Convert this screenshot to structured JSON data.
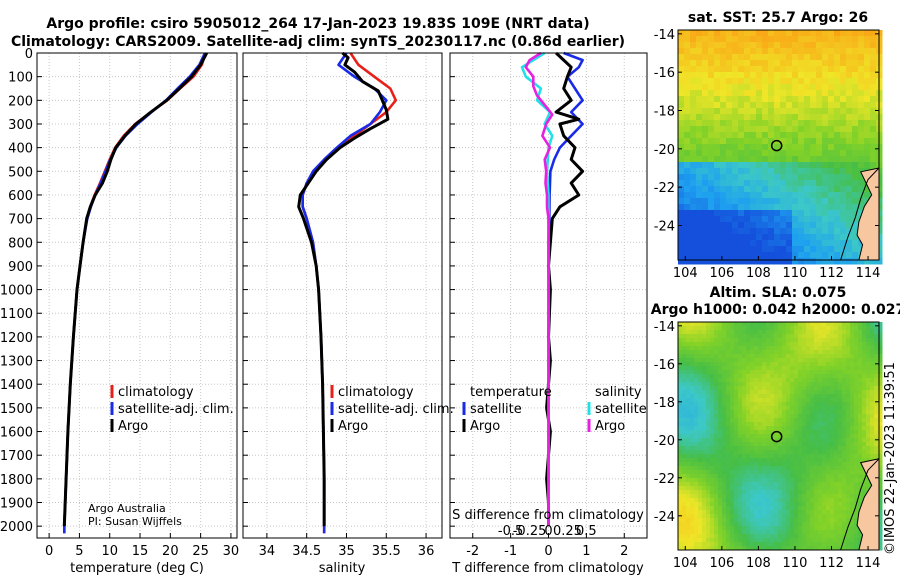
{
  "title_line1": "Argo profile: csiro 5905012_264 17-Jan-2023 19.83S 109E (NRT data)",
  "title_line2": "Climatology: CARS2009. Satellite-adj clim: synTS_20230117.nc (0.86d earlier)",
  "colors": {
    "climatology": "#e8201a",
    "satellite": "#1a2be8",
    "argo": "#000000",
    "sat_salinity": "#22e0e8",
    "argo_salinity": "#e622e0",
    "land": "#f7c8a0"
  },
  "credit": {
    "line1": "Argo Australia",
    "line2": "PI: Susan Wijffels"
  },
  "legend_main": [
    "climatology",
    "satellite-adj. clim.",
    "Argo"
  ],
  "legend_diff": {
    "temperature_head": "temperature",
    "salinity_head": "salinity",
    "temperature_items": [
      "satellite",
      "Argo"
    ],
    "salinity_items": [
      "satellite",
      "Argo"
    ]
  },
  "timestamp": "©IMOS 22-Jan-2023 11:39:51",
  "chart_data": [
    {
      "name": "temperature",
      "type": "line",
      "xlabel": "temperature (deg C)",
      "xlim": [
        -2,
        31
      ],
      "xticks": [
        0,
        5,
        10,
        15,
        20,
        25,
        30
      ],
      "ylim": [
        0,
        2050
      ],
      "yticks": [
        0,
        100,
        200,
        300,
        400,
        500,
        600,
        700,
        800,
        900,
        1000,
        1100,
        1200,
        1300,
        1400,
        1500,
        1600,
        1700,
        1800,
        1900,
        2000
      ],
      "series": [
        {
          "name": "climatology",
          "depth": [
            0,
            50,
            100,
            150,
            200,
            250,
            300,
            350,
            400,
            450,
            500,
            550,
            600,
            650,
            700,
            800,
            900,
            1000,
            1200,
            1400,
            1600,
            1800,
            2000,
            2030
          ],
          "values": [
            25.8,
            25.2,
            23.8,
            21.6,
            19.5,
            16.8,
            14.2,
            12.3,
            10.9,
            10.0,
            9.2,
            8.4,
            7.5,
            6.8,
            6.2,
            5.6,
            5.1,
            4.6,
            4.0,
            3.5,
            3.1,
            2.8,
            2.5,
            2.5
          ]
        },
        {
          "name": "satellite-adj. clim.",
          "depth": [
            0,
            50,
            100,
            150,
            200,
            250,
            300,
            350,
            400,
            450,
            500,
            550,
            600,
            650,
            700,
            800,
            900,
            1000,
            1200,
            1400,
            1600,
            1800,
            2000,
            2030
          ],
          "values": [
            25.7,
            24.8,
            23.2,
            21.2,
            19.3,
            16.9,
            14.6,
            12.6,
            11.1,
            10.1,
            9.3,
            8.5,
            7.6,
            6.9,
            6.3,
            5.6,
            5.1,
            4.6,
            4.0,
            3.5,
            3.1,
            2.8,
            2.5,
            2.5
          ]
        },
        {
          "name": "Argo",
          "depth": [
            0,
            50,
            100,
            150,
            200,
            250,
            300,
            350,
            400,
            450,
            500,
            550,
            600,
            650,
            700,
            800,
            900,
            1000,
            1200,
            1400,
            1600,
            1800,
            2000
          ],
          "values": [
            26.0,
            25.0,
            23.5,
            21.5,
            19.4,
            16.8,
            14.3,
            12.5,
            11.0,
            10.2,
            9.6,
            8.8,
            7.6,
            6.8,
            6.2,
            5.6,
            5.1,
            4.6,
            4.0,
            3.5,
            3.1,
            2.8,
            2.5
          ]
        }
      ]
    },
    {
      "name": "salinity",
      "type": "line",
      "xlabel": "salinity",
      "xlim": [
        33.7,
        36.2
      ],
      "xticks": [
        34,
        34.5,
        35,
        35.5,
        36
      ],
      "ylim": [
        0,
        2050
      ],
      "series": [
        {
          "name": "climatology",
          "depth": [
            0,
            50,
            100,
            150,
            200,
            250,
            300,
            350,
            400,
            450,
            500,
            550,
            600,
            650,
            700,
            800,
            900,
            1000,
            1200,
            1400,
            1600,
            1800,
            2000,
            2030
          ],
          "values": [
            35.05,
            35.15,
            35.35,
            35.55,
            35.62,
            35.5,
            35.3,
            35.1,
            34.9,
            34.75,
            34.6,
            34.5,
            34.45,
            34.45,
            34.5,
            34.58,
            34.62,
            34.65,
            34.68,
            34.7,
            34.71,
            34.72,
            34.72,
            34.72
          ]
        },
        {
          "name": "satellite-adj. clim.",
          "depth": [
            0,
            50,
            100,
            150,
            200,
            250,
            300,
            350,
            400,
            450,
            500,
            550,
            600,
            650,
            700,
            800,
            900,
            1000,
            1200,
            1400,
            1600,
            1800,
            2000,
            2030
          ],
          "values": [
            35.0,
            34.9,
            35.1,
            35.35,
            35.5,
            35.42,
            35.3,
            35.05,
            34.88,
            34.72,
            34.58,
            34.5,
            34.45,
            34.45,
            34.5,
            34.58,
            34.62,
            34.65,
            34.68,
            34.7,
            34.71,
            34.72,
            34.72,
            34.72
          ]
        },
        {
          "name": "Argo",
          "depth": [
            0,
            20,
            50,
            80,
            120,
            160,
            200,
            240,
            280,
            320,
            360,
            400,
            450,
            500,
            550,
            600,
            650,
            700,
            800,
            900,
            1000,
            1200,
            1400,
            1600,
            1800,
            2000
          ],
          "values": [
            34.95,
            35.02,
            34.98,
            35.1,
            35.2,
            35.4,
            35.45,
            35.5,
            35.52,
            35.3,
            35.1,
            34.92,
            34.75,
            34.62,
            34.52,
            34.42,
            34.4,
            34.46,
            34.56,
            34.62,
            34.65,
            34.68,
            34.7,
            34.71,
            34.72,
            34.72
          ]
        }
      ]
    },
    {
      "name": "difference",
      "type": "line",
      "xlabel": "T difference from climatology",
      "xlabel_top": "S difference from climatology",
      "xlim": [
        -2.6,
        2.6
      ],
      "xticks": [
        -2,
        -1,
        0,
        1,
        2
      ],
      "sticks": [
        -0.5,
        -0.25,
        0,
        0.25,
        0.5
      ],
      "stick_labels": [
        "-0.5",
        "-0.25",
        "0",
        "0.25",
        "0.5"
      ],
      "ylim": [
        0,
        2050
      ],
      "series": [
        {
          "name": "T satellite",
          "depth": [
            0,
            30,
            60,
            100,
            150,
            200,
            250,
            300,
            350,
            400,
            450,
            500,
            600,
            700,
            800,
            1000,
            1200,
            1500,
            1800,
            2000
          ],
          "values": [
            0.4,
            0.9,
            0.8,
            0.5,
            0.7,
            0.9,
            0.6,
            0.9,
            0.6,
            0.3,
            0.15,
            0.05,
            0.03,
            0.02,
            0.0,
            0.0,
            0.0,
            0.0,
            0.0,
            0.0
          ]
        },
        {
          "name": "T Argo",
          "depth": [
            0,
            30,
            60,
            100,
            150,
            200,
            250,
            280,
            300,
            350,
            400,
            450,
            500,
            550,
            600,
            650,
            700,
            800,
            900,
            1000,
            1200,
            1300,
            1400,
            1500,
            1600,
            1700,
            1800,
            1900,
            2000
          ],
          "values": [
            0.2,
            0.4,
            0.6,
            0.5,
            0.4,
            0.6,
            0.2,
            0.8,
            0.3,
            0.4,
            0.7,
            0.6,
            0.9,
            0.6,
            0.8,
            0.3,
            0.1,
            0.05,
            0.0,
            0.05,
            0.0,
            0.05,
            0.0,
            -0.05,
            0.05,
            0.0,
            -0.05,
            0.0,
            0.0
          ]
        },
        {
          "name": "S satellite",
          "depth": [
            0,
            30,
            60,
            100,
            150,
            200,
            250,
            300,
            350,
            400,
            500,
            600,
            700,
            800,
            1000,
            1500,
            2000
          ],
          "values": [
            -0.05,
            -0.2,
            -0.35,
            -0.3,
            -0.1,
            -0.15,
            0.02,
            -0.05,
            0.05,
            0.0,
            -0.02,
            0.0,
            0.0,
            0.0,
            0.0,
            0.0,
            0.0
          ]
        },
        {
          "name": "S Argo",
          "depth": [
            0,
            30,
            60,
            100,
            140,
            180,
            220,
            260,
            300,
            350,
            400,
            450,
            500,
            550,
            600,
            650,
            700,
            800,
            1000,
            1500,
            2000
          ],
          "values": [
            -0.1,
            -0.25,
            -0.3,
            -0.2,
            -0.2,
            -0.15,
            -0.05,
            0.05,
            -0.03,
            -0.08,
            0.02,
            -0.05,
            -0.03,
            -0.04,
            -0.02,
            -0.02,
            0.0,
            0.0,
            0.0,
            0.0,
            0.0
          ]
        }
      ]
    },
    {
      "name": "sat_sst_map",
      "type": "heatmap",
      "title": "sat. SST: 25.7 Argo: 26",
      "xlim": [
        103.6,
        114.6
      ],
      "ylim": [
        -25.8,
        -13.8
      ],
      "xticks": [
        104,
        106,
        108,
        110,
        112,
        114
      ],
      "yticks": [
        -14,
        -16,
        -18,
        -20,
        -22,
        -24
      ],
      "marker": [
        109.0,
        -19.83
      ]
    },
    {
      "name": "sla_map",
      "type": "heatmap",
      "title_line1": "Altim. SLA: 0.075",
      "title_line2": "Argo h1000: 0.042 h2000: 0.027",
      "xlim": [
        103.6,
        114.6
      ],
      "ylim": [
        -25.8,
        -13.8
      ],
      "xticks": [
        104,
        106,
        108,
        110,
        112,
        114
      ],
      "yticks": [
        -14,
        -16,
        -18,
        -20,
        -22,
        -24
      ],
      "marker": [
        109.0,
        -19.83
      ]
    }
  ]
}
